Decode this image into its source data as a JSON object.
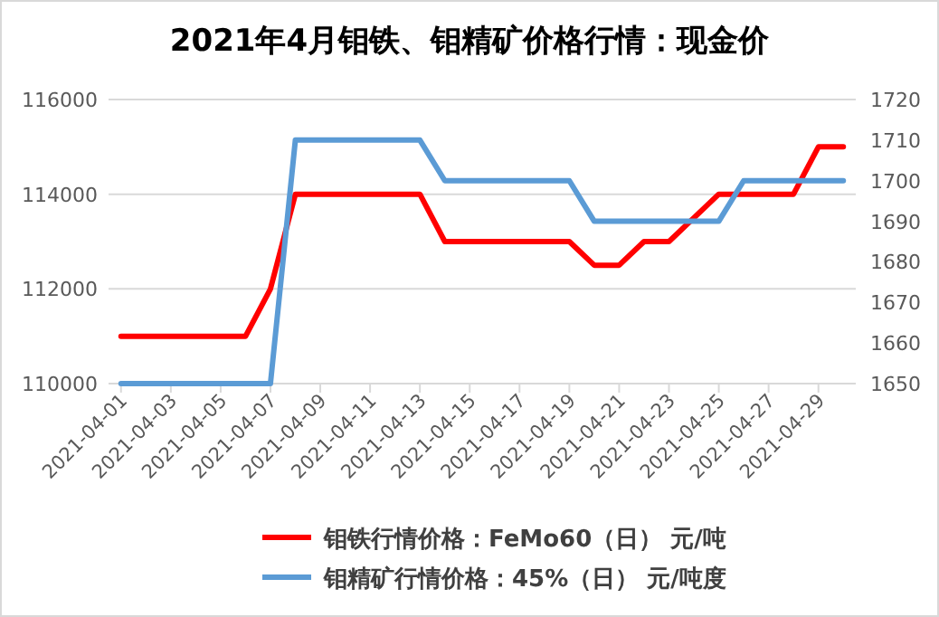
{
  "chart_data": {
    "type": "line",
    "title": "2021年4月钼铁、钼精矿价格行情：现金价",
    "x": [
      "2021-04-01",
      "2021-04-02",
      "2021-04-06",
      "2021-04-07",
      "2021-04-08",
      "2021-04-09",
      "2021-04-12",
      "2021-04-13",
      "2021-04-14",
      "2021-04-15",
      "2021-04-16",
      "2021-04-19",
      "2021-04-20",
      "2021-04-21",
      "2021-04-22",
      "2021-04-23",
      "2021-04-25",
      "2021-04-26",
      "2021-04-27",
      "2021-04-28",
      "2021-04-29",
      "2021-04-30"
    ],
    "series": [
      {
        "name": "钼铁行情价格：FeMo60（日） 元/吨",
        "color": "#ff0000",
        "values": [
          111000,
          111000,
          111000,
          112000,
          114000,
          114000,
          114000,
          114000,
          113000,
          113000,
          113000,
          113000,
          112500,
          112500,
          113000,
          113000,
          114000,
          114000,
          114000,
          114000,
          115000,
          115000
        ]
      },
      {
        "name": "钼精矿行情价格：45%（日） 元/吨度",
        "color": "#5b9bd5",
        "axis": "y2",
        "values": [
          1650,
          1650,
          1650,
          1650,
          1710,
          1710,
          1710,
          1710,
          1700,
          1700,
          1700,
          1700,
          1690,
          1690,
          1690,
          1690,
          1690,
          1700,
          1700,
          1700,
          1700,
          1700
        ]
      }
    ],
    "xlim": [
      "2021-03-31T12:00",
      "2021-04-30T12:00"
    ],
    "xticks": [
      "2021-04-01",
      "2021-04-03",
      "2021-04-05",
      "2021-04-07",
      "2021-04-09",
      "2021-04-11",
      "2021-04-13",
      "2021-04-15",
      "2021-04-17",
      "2021-04-19",
      "2021-04-21",
      "2021-04-23",
      "2021-04-25",
      "2021-04-27",
      "2021-04-29"
    ],
    "ylim": [
      110000,
      116000
    ],
    "yticks": [
      110000,
      112000,
      114000,
      116000
    ],
    "y2lim": [
      1650,
      1720
    ],
    "y2ticks": [
      1650,
      1660,
      1670,
      1680,
      1690,
      1700,
      1710,
      1720
    ],
    "grid": "y",
    "legend": "bottom",
    "marker": "none",
    "line_style": "solid"
  }
}
